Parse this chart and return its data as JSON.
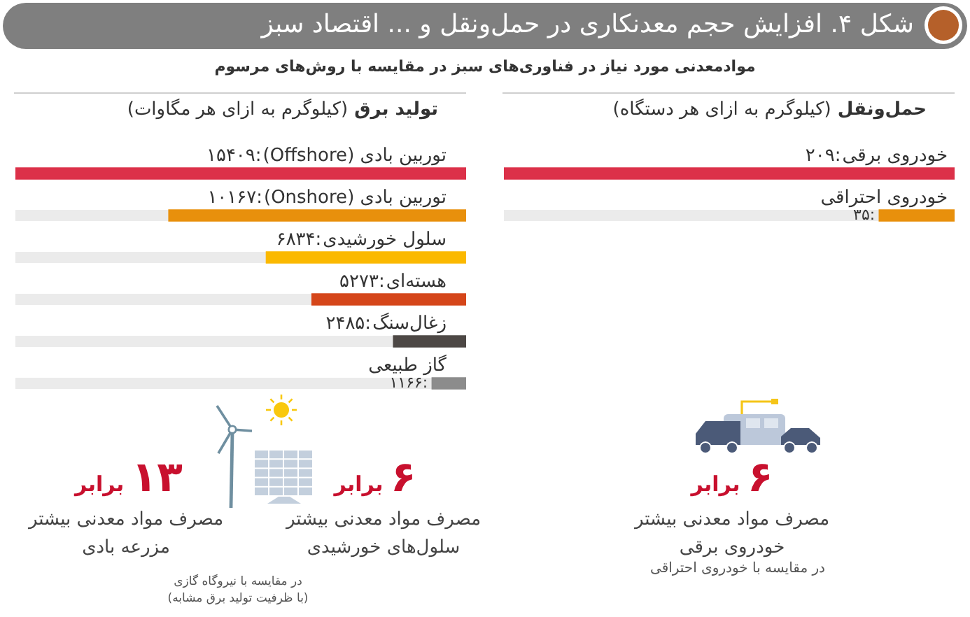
{
  "chart_data": [
    {
      "type": "other",
      "title": "شکل ۴. افزایش حجم معدنکاری در حمل‌ونقل و ... اقتصاد سبز",
      "subtitle": "موادمعدنی مورد نیاز در فناوری‌های سبز در مقایسه با روش‌های مرسوم"
    },
    {
      "type": "bar",
      "orientation": "horizontal",
      "title": "حمل‌ونقل (کیلوگرم به ازای هر دستگاه)",
      "categories": [
        "خودروی برقی",
        "خودروی احتراقی"
      ],
      "values": [
        209,
        35
      ],
      "value_labels": [
        ":۲۰۹",
        ":۳۵"
      ],
      "colors": [
        "#dc3149",
        "#e8900c"
      ],
      "xlim": [
        209,
        0
      ],
      "tick_labels": "y",
      "annotations": [
        "۶ برابر",
        "مصرف مواد معدنی بیشتر\nخودروی برقی",
        "در مقایسه با خودروی احتراقی"
      ]
    },
    {
      "type": "bar",
      "orientation": "horizontal",
      "title": "تولید برق (کیلوگرم به ازای هر مگاوات)",
      "categories": [
        "توربین بادی (Offshore)",
        "توربین بادی (Onshore)",
        "سلول خورشیدی",
        "هسته‌ای",
        "زغال‌سنگ",
        "گاز طبیعی"
      ],
      "values": [
        15409,
        10167,
        6834,
        5273,
        2485,
        1166
      ],
      "value_labels": [
        ":۱۵۴۰۹",
        ":۱۰۱۶۷",
        ":۶۸۳۴",
        ":۵۲۷۳",
        ":۲۴۸۵",
        ":۱۱۶۶"
      ],
      "colors": [
        "#dc3149",
        "#e8900c",
        "#fbb900",
        "#d5461a",
        "#4d4845",
        "#8c8c8c"
      ],
      "xlim": [
        15409,
        0
      ],
      "tick_labels": "y",
      "annotations": [
        "۱۳ برابر",
        "مصرف مواد معدنی بیشتر\nمزرعه بادی",
        "۶ برابر",
        "مصرف مواد معدنی بیشتر\nسلول‌های خورشیدی",
        "در مقایسه با نیروگاه گازی\n(با ظرفیت تولید برق مشابه)"
      ]
    }
  ]
}
